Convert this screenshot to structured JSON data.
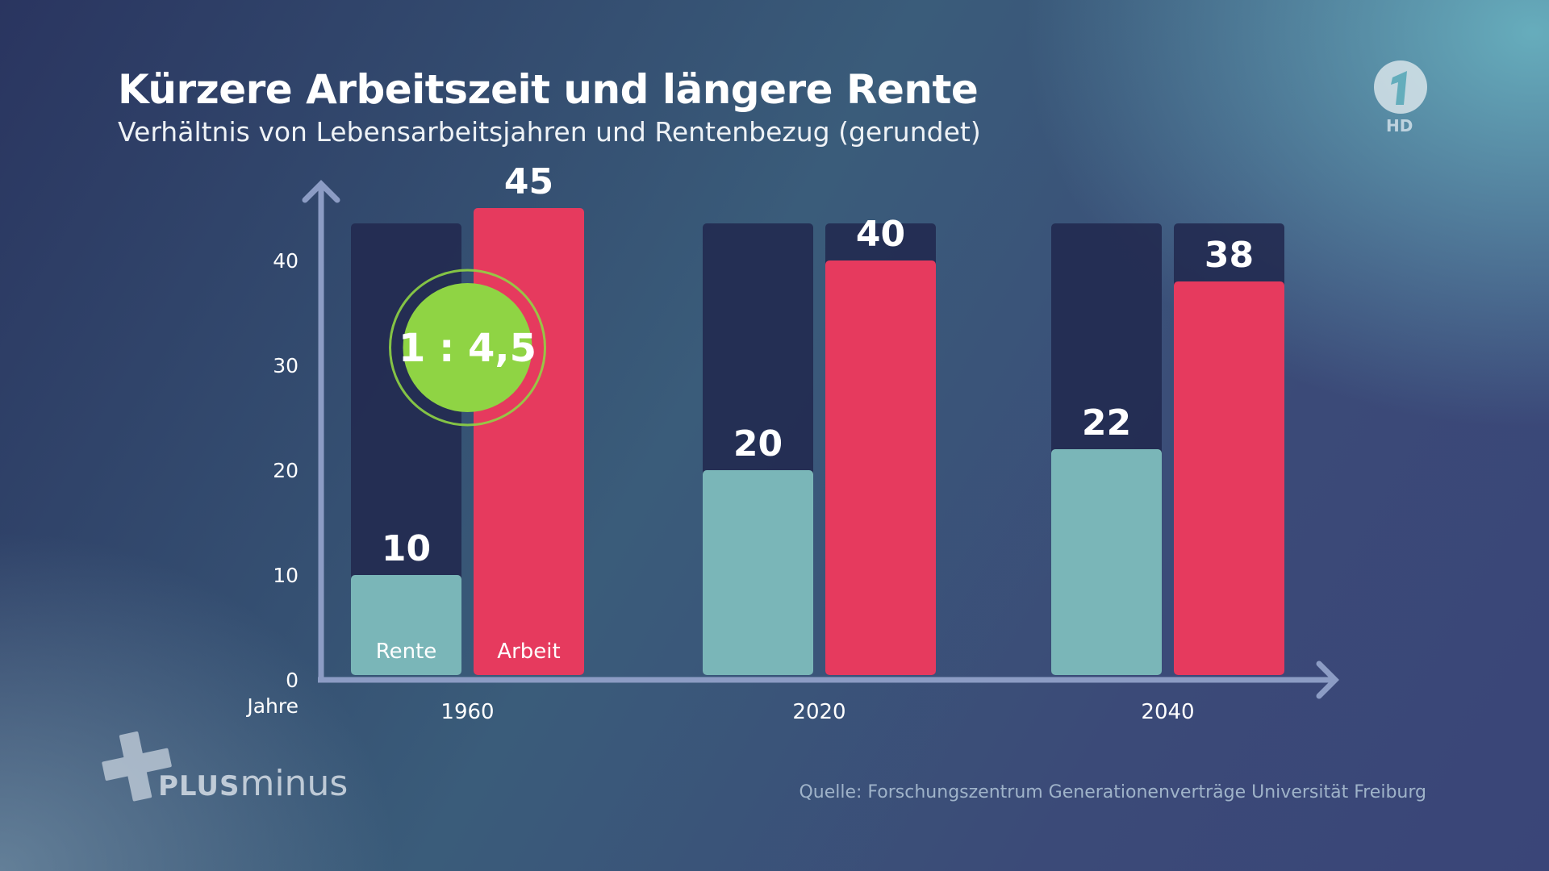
{
  "header": {
    "title": "Kürzere Arbeitszeit und längere Rente",
    "subtitle": "Verhältnis von Lebensarbeitsjahren und Rentenbezug (gerundet)"
  },
  "chart_data": {
    "type": "bar",
    "categories": [
      "1960",
      "2020",
      "2040"
    ],
    "series": [
      {
        "name": "Rente",
        "values": [
          10,
          20,
          22
        ],
        "color": "#7ab6b8"
      },
      {
        "name": "Arbeit",
        "values": [
          45,
          40,
          38
        ],
        "color": "#e63a5e"
      }
    ],
    "ylabel": "Jahre",
    "ylim": [
      0,
      43
    ],
    "yticks": [
      0,
      10,
      20,
      30,
      40
    ],
    "ytick_labels": [
      "0",
      "10",
      "20",
      "30",
      "40"
    ],
    "data_labels": {
      "Rente": [
        "10",
        "20",
        "22"
      ],
      "Arbeit": [
        "45",
        "40",
        "38"
      ]
    },
    "legend": "in-bar labels on first category",
    "annotation": {
      "text": "1 : 4,5",
      "category": "1960",
      "color": "#8fd444"
    },
    "background_bar_color": "#222a50",
    "axis_color": "#8c9cc4"
  },
  "source": "Quelle: Forschungszentrum Generationenverträge Universität Freiburg",
  "branding": {
    "show_logo_plus": "PLUS",
    "show_logo_minus": "minus",
    "station_badge": "HD"
  }
}
